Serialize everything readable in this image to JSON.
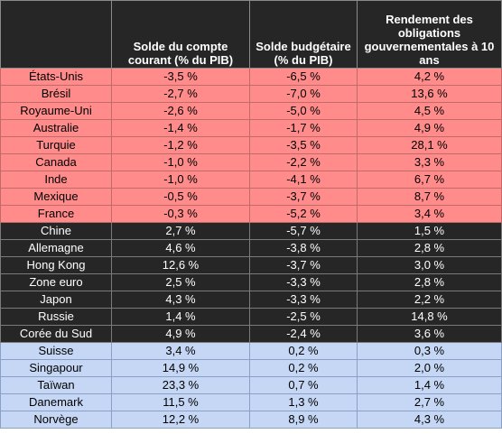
{
  "headers": [
    "",
    "Solde du compte courant (% du PIB)",
    "Solde budgétaire (% du PIB)",
    "Rendement des obligations gouvernementales à 10 ans"
  ],
  "colors": {
    "header_bg": "#262626",
    "group_red": "#ff8b8b",
    "group_dark": "#262626",
    "group_blue": "#c5d7f4"
  },
  "groups": [
    {
      "style": "red",
      "rows": [
        [
          "États-Unis",
          "-3,5 %",
          "-6,5 %",
          "4,2 %"
        ],
        [
          "Brésil",
          "-2,7 %",
          "-7,0 %",
          "13,6 %"
        ],
        [
          "Royaume-Uni",
          "-2,6 %",
          "-5,0 %",
          "4,5 %"
        ],
        [
          "Australie",
          "-1,4 %",
          "-1,7 %",
          "4,9 %"
        ],
        [
          "Turquie",
          "-1,2 %",
          "-3,5 %",
          "28,1 %"
        ],
        [
          "Canada",
          "-1,0 %",
          "-2,2 %",
          "3,3 %"
        ],
        [
          "Inde",
          "-1,0 %",
          "-4,1 %",
          "6,7 %"
        ],
        [
          "Mexique",
          "-0,5 %",
          "-3,7 %",
          "8,7 %"
        ],
        [
          "France",
          "-0,3 %",
          "-5,2 %",
          "3,4 %"
        ]
      ]
    },
    {
      "style": "dark",
      "rows": [
        [
          "Chine",
          "2,7 %",
          "-5,7 %",
          "1,5 %"
        ],
        [
          "Allemagne",
          "4,6 %",
          "-3,8 %",
          "2,8 %"
        ],
        [
          "Hong Kong",
          "12,6 %",
          "-3,7 %",
          "3,0 %"
        ],
        [
          "Zone euro",
          "2,5 %",
          "-3,3 %",
          "2,8 %"
        ],
        [
          "Japon",
          "4,3 %",
          "-3,3 %",
          "2,2 %"
        ],
        [
          "Russie",
          "1,4 %",
          "-2,5 %",
          "14,8 %"
        ],
        [
          "Corée du Sud",
          "4,9 %",
          "-2,4 %",
          "3,6 %"
        ]
      ]
    },
    {
      "style": "blue",
      "rows": [
        [
          "Suisse",
          "3,4 %",
          "0,2 %",
          "0,3 %"
        ],
        [
          "Singapour",
          "14,9 %",
          "0,2 %",
          "2,0 %"
        ],
        [
          "Taïwan",
          "23,3 %",
          "0,7 %",
          "1,4 %"
        ],
        [
          "Danemark",
          "11,5 %",
          "1,3 %",
          "2,7 %"
        ],
        [
          "Norvège",
          "12,2 %",
          "8,9 %",
          "4,3 %"
        ]
      ]
    }
  ]
}
